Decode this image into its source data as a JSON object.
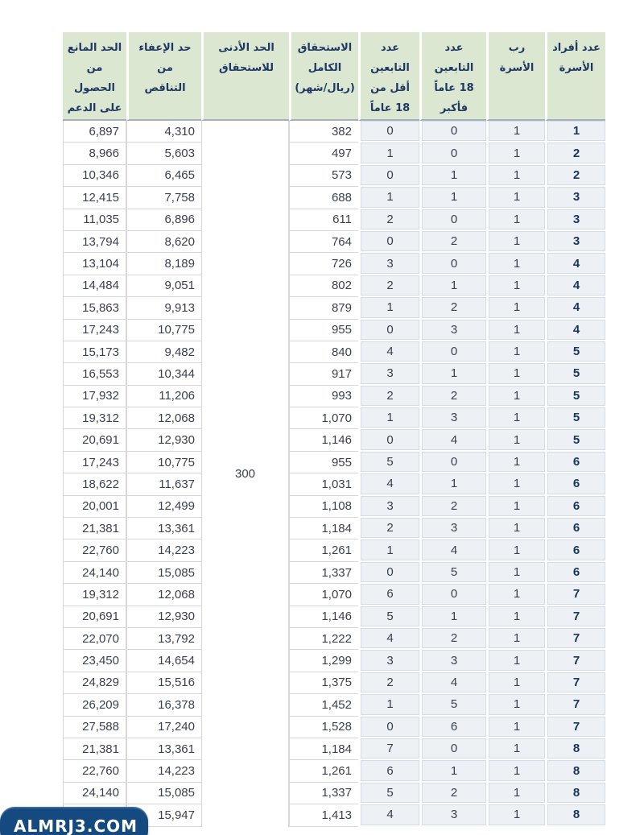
{
  "style": {
    "header_bg": "#dbe7d1",
    "header_text": "#1f3864",
    "count_cell_bg": "#edf0f4",
    "number_text": "#39414e",
    "family_bold_text": "#17365d",
    "watermark_bg": "#154a80",
    "watermark_text_color": "#ffffff"
  },
  "watermark": {
    "text": "ALMRJ3.COM"
  },
  "chart_data": {
    "type": "table",
    "direction": "rtl",
    "columns": [
      {
        "id": "family_size",
        "label": "عدد أفراد\nالأسرة"
      },
      {
        "id": "head_of_family",
        "label": "رب\nالأسرة"
      },
      {
        "id": "deps_18_plus",
        "label": "عدد\nالتابعين\n18 عاماً\nفأكبر"
      },
      {
        "id": "deps_under_18",
        "label": "عدد\nالتابعين\nأقل من\n18 عاماً"
      },
      {
        "id": "full_entitlement",
        "label": "الاستحقاق\nالكامل\n(ريال/شهر)"
      },
      {
        "id": "min_entitlement",
        "label": "الحد الأدنى\nللاستحقاق"
      },
      {
        "id": "exemption_limit",
        "label": "حد الإعفاء\nمن\nالتناقص"
      },
      {
        "id": "block_limit",
        "label": "الحد المانع\nمن\nالحصول\nعلى الدعم"
      }
    ],
    "min_entitlement_merged_value": "300",
    "row_fields": [
      "family_size",
      "head_of_family",
      "deps_18_plus",
      "deps_under_18",
      "full_entitlement",
      "exemption_limit",
      "block_limit"
    ],
    "rows": [
      [
        "1",
        "1",
        "0",
        "0",
        "382",
        "4,310",
        "6,897"
      ],
      [
        "2",
        "1",
        "0",
        "1",
        "497",
        "5,603",
        "8,966"
      ],
      [
        "2",
        "1",
        "1",
        "0",
        "573",
        "6,465",
        "10,346"
      ],
      [
        "3",
        "1",
        "1",
        "1",
        "688",
        "7,758",
        "12,415"
      ],
      [
        "3",
        "1",
        "0",
        "2",
        "611",
        "6,896",
        "11,035"
      ],
      [
        "3",
        "1",
        "2",
        "0",
        "764",
        "8,620",
        "13,794"
      ],
      [
        "4",
        "1",
        "0",
        "3",
        "726",
        "8,189",
        "13,104"
      ],
      [
        "4",
        "1",
        "1",
        "2",
        "802",
        "9,051",
        "14,484"
      ],
      [
        "4",
        "1",
        "2",
        "1",
        "879",
        "9,913",
        "15,863"
      ],
      [
        "4",
        "1",
        "3",
        "0",
        "955",
        "10,775",
        "17,243"
      ],
      [
        "5",
        "1",
        "0",
        "4",
        "840",
        "9,482",
        "15,173"
      ],
      [
        "5",
        "1",
        "1",
        "3",
        "917",
        "10,344",
        "16,553"
      ],
      [
        "5",
        "1",
        "2",
        "2",
        "993",
        "11,206",
        "17,932"
      ],
      [
        "5",
        "1",
        "3",
        "1",
        "1,070",
        "12,068",
        "19,312"
      ],
      [
        "5",
        "1",
        "4",
        "0",
        "1,146",
        "12,930",
        "20,691"
      ],
      [
        "6",
        "1",
        "0",
        "5",
        "955",
        "10,775",
        "17,243"
      ],
      [
        "6",
        "1",
        "1",
        "4",
        "1,031",
        "11,637",
        "18,622"
      ],
      [
        "6",
        "1",
        "2",
        "3",
        "1,108",
        "12,499",
        "20,001"
      ],
      [
        "6",
        "1",
        "3",
        "2",
        "1,184",
        "13,361",
        "21,381"
      ],
      [
        "6",
        "1",
        "4",
        "1",
        "1,261",
        "14,223",
        "22,760"
      ],
      [
        "6",
        "1",
        "5",
        "0",
        "1,337",
        "15,085",
        "24,140"
      ],
      [
        "7",
        "1",
        "0",
        "6",
        "1,070",
        "12,068",
        "19,312"
      ],
      [
        "7",
        "1",
        "1",
        "5",
        "1,146",
        "12,930",
        "20,691"
      ],
      [
        "7",
        "1",
        "2",
        "4",
        "1,222",
        "13,792",
        "22,070"
      ],
      [
        "7",
        "1",
        "3",
        "3",
        "1,299",
        "14,654",
        "23,450"
      ],
      [
        "7",
        "1",
        "4",
        "2",
        "1,375",
        "15,516",
        "24,829"
      ],
      [
        "7",
        "1",
        "5",
        "1",
        "1,452",
        "16,378",
        "26,209"
      ],
      [
        "7",
        "1",
        "6",
        "0",
        "1,528",
        "17,240",
        "27,588"
      ],
      [
        "8",
        "1",
        "0",
        "7",
        "1,184",
        "13,361",
        "21,381"
      ],
      [
        "8",
        "1",
        "1",
        "6",
        "1,261",
        "14,223",
        "22,760"
      ],
      [
        "8",
        "1",
        "2",
        "5",
        "1,337",
        "15,085",
        "24,140"
      ],
      [
        "8",
        "1",
        "3",
        "4",
        "1,413",
        "15,947",
        ""
      ]
    ]
  }
}
